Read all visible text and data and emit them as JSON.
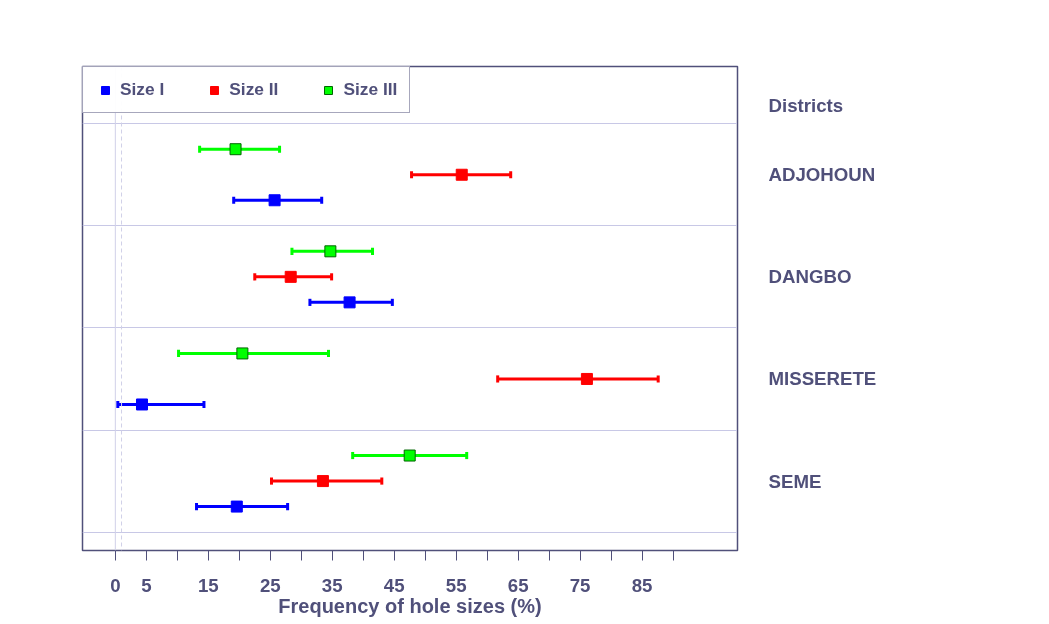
{
  "chart_data": {
    "type": "scatter",
    "orientation": "horizontal",
    "xlabel": "Frequency of hole sizes (%)",
    "ylabel": "Districts",
    "categories": [
      "ADJOHOUN",
      "DANGBO",
      "MISSERETE",
      "SEME"
    ],
    "series": [
      {
        "name": "Size I",
        "color": "#0000ff",
        "values": [
          25.7,
          37.8,
          4.3,
          19.6
        ],
        "errors": [
          [
            19.1,
            33.3
          ],
          [
            31.4,
            44.7
          ],
          [
            0.4,
            14.3
          ],
          [
            13.1,
            27.8
          ]
        ]
      },
      {
        "name": "Size II",
        "color": "#ff0000",
        "values": [
          55.9,
          28.3,
          76.1,
          33.5
        ],
        "errors": [
          [
            47.8,
            63.8
          ],
          [
            22.5,
            34.9
          ],
          [
            61.7,
            87.6
          ],
          [
            25.2,
            43.0
          ]
        ]
      },
      {
        "name": "Size III",
        "color": "#00ff00",
        "values": [
          19.4,
          34.7,
          20.5,
          47.5
        ],
        "errors": [
          [
            13.6,
            26.5
          ],
          [
            28.5,
            41.5
          ],
          [
            10.2,
            34.4
          ],
          [
            38.3,
            56.7
          ]
        ]
      }
    ],
    "xlim": [
      -5.3,
      100.4
    ],
    "xticks": [
      0,
      5,
      {
        "value": 10,
        "label": null
      },
      15,
      {
        "value": 20,
        "label": null
      },
      25,
      {
        "value": 30,
        "label": null
      },
      35,
      {
        "value": 40,
        "label": null
      },
      45,
      {
        "value": 50,
        "label": null
      },
      55,
      {
        "value": 60,
        "label": null
      },
      65,
      {
        "value": 70,
        "label": null
      },
      75,
      {
        "value": 80,
        "label": null
      },
      85,
      {
        "value": 90,
        "label": null
      }
    ],
    "ref_lines": [
      {
        "axis": "x",
        "value": 0,
        "color": "#d0d0e8",
        "line_style": "solid"
      },
      {
        "axis": "x",
        "value": 1,
        "color": "#d0d0e8",
        "line_style": "dashed"
      }
    ],
    "grid": "y",
    "legend": "top left",
    "marker": "square"
  }
}
